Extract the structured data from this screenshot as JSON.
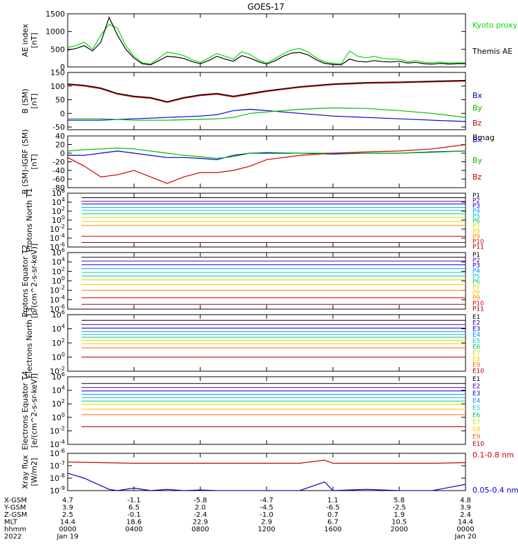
{
  "title": "GOES-17",
  "chart_data": [
    {
      "type": "line",
      "ylabel": "AE index [nT]",
      "ylim": [
        0,
        1500
      ],
      "yticks": [
        "0",
        "500",
        "1000",
        "1500"
      ],
      "ytick_values": [
        0,
        500,
        1000,
        1500
      ],
      "yscale": "linear",
      "legend": [
        {
          "name": "Kyoto proxy AE",
          "color": "#00dd00"
        },
        {
          "name": "Themis AE",
          "color": "#000000"
        }
      ],
      "series": [
        {
          "name": "Kyoto proxy AE",
          "color": "#00dd00",
          "x": [
            0,
            0.5,
            1,
            1.5,
            2,
            2.5,
            3,
            3.5,
            4,
            4.5,
            5,
            5.5,
            6,
            6.5,
            7,
            7.5,
            8,
            8.5,
            9,
            9.5,
            10,
            10.5,
            11,
            11.5,
            12,
            12.5,
            13,
            13.5,
            14,
            14.5,
            15,
            15.5,
            16,
            16.5,
            17,
            17.5,
            18,
            18.5,
            19,
            19.5,
            20,
            20.5,
            21,
            21.5,
            22,
            22.5,
            23,
            23.5,
            24
          ],
          "values": [
            550,
            600,
            700,
            500,
            900,
            1200,
            1100,
            600,
            300,
            120,
            80,
            250,
            420,
            380,
            320,
            200,
            130,
            250,
            380,
            300,
            220,
            430,
            350,
            200,
            110,
            230,
            370,
            480,
            520,
            420,
            260,
            140,
            100,
            90,
            450,
            300,
            260,
            300,
            240,
            220,
            220,
            150,
            180,
            130,
            120,
            140,
            110,
            120,
            120
          ]
        },
        {
          "name": "Themis AE",
          "color": "#000000",
          "x": [
            0,
            0.5,
            1,
            1.5,
            2,
            2.5,
            3,
            3.5,
            4,
            4.5,
            5,
            5.5,
            6,
            6.5,
            7,
            7.5,
            8,
            8.5,
            9,
            9.5,
            10,
            10.5,
            11,
            11.5,
            12,
            12.5,
            13,
            13.5,
            14,
            14.5,
            15,
            15.5,
            16,
            16.5,
            17,
            17.5,
            18,
            18.5,
            19,
            19.5,
            20,
            20.5,
            21,
            21.5,
            22,
            22.5,
            23,
            23.5,
            24
          ],
          "values": [
            480,
            520,
            600,
            450,
            700,
            1400,
            900,
            500,
            250,
            90,
            60,
            180,
            300,
            280,
            240,
            150,
            90,
            180,
            300,
            220,
            160,
            320,
            250,
            150,
            80,
            170,
            300,
            390,
            410,
            340,
            200,
            100,
            70,
            60,
            220,
            160,
            140,
            180,
            150,
            140,
            160,
            110,
            130,
            90,
            80,
            100,
            80,
            90,
            90
          ]
        }
      ]
    },
    {
      "type": "line",
      "ylabel": "B (SM) [nT]",
      "ylim": [
        -60,
        150
      ],
      "yticks": [
        "-50",
        "0",
        "50",
        "100",
        "150"
      ],
      "ytick_values": [
        -50,
        0,
        50,
        100,
        150
      ],
      "yscale": "linear",
      "legend": [
        {
          "name": "Bx",
          "color": "#0000cc"
        },
        {
          "name": "By",
          "color": "#00bb00"
        },
        {
          "name": "Bz",
          "color": "#cc0000"
        },
        {
          "name": "Bmag",
          "color": "#000000"
        }
      ],
      "series": [
        {
          "name": "Bx",
          "color": "#0000cc",
          "x": [
            0,
            2,
            4,
            6,
            8,
            9,
            10,
            11,
            12,
            14,
            16,
            18,
            20,
            22,
            24
          ],
          "values": [
            -25,
            -25,
            -20,
            -15,
            -10,
            -5,
            10,
            15,
            10,
            0,
            -10,
            -15,
            -20,
            -25,
            -30
          ]
        },
        {
          "name": "By",
          "color": "#00bb00",
          "x": [
            0,
            2,
            4,
            6,
            8,
            9,
            10,
            11,
            12,
            14,
            16,
            18,
            20,
            22,
            24
          ],
          "values": [
            -20,
            -20,
            -25,
            -25,
            -22,
            -20,
            -15,
            0,
            5,
            15,
            20,
            18,
            10,
            0,
            -15
          ]
        },
        {
          "name": "Bz",
          "color": "#cc0000",
          "x": [
            0,
            1,
            2,
            3,
            4,
            5,
            6,
            7,
            8,
            9,
            10,
            11,
            12,
            14,
            16,
            18,
            20,
            22,
            24
          ],
          "values": [
            105,
            100,
            90,
            70,
            60,
            55,
            40,
            55,
            65,
            70,
            60,
            70,
            80,
            95,
            105,
            110,
            112,
            115,
            118
          ]
        },
        {
          "name": "Bmag",
          "color": "#000000",
          "x": [
            0,
            1,
            2,
            3,
            4,
            5,
            6,
            7,
            8,
            9,
            10,
            11,
            12,
            14,
            16,
            18,
            20,
            22,
            24
          ],
          "values": [
            108,
            103,
            93,
            73,
            63,
            58,
            43,
            58,
            68,
            73,
            63,
            73,
            83,
            98,
            108,
            113,
            115,
            118,
            121
          ]
        }
      ]
    },
    {
      "type": "line",
      "ylabel": "B (SM)-IGRF (SM) [nT]",
      "ylim": [
        -80,
        40
      ],
      "yticks": [
        "-80",
        "-60",
        "-40",
        "-20",
        "0",
        "20",
        "40"
      ],
      "ytick_values": [
        -80,
        -60,
        -40,
        -20,
        0,
        20,
        40
      ],
      "yscale": "linear",
      "legend": [
        {
          "name": "Bx",
          "color": "#0000cc"
        },
        {
          "name": "By",
          "color": "#00bb00"
        },
        {
          "name": "Bz",
          "color": "#cc0000"
        }
      ],
      "series": [
        {
          "name": "Bx",
          "color": "#0000cc",
          "x": [
            0,
            1,
            2,
            3,
            4,
            5,
            6,
            7,
            8,
            9,
            10,
            11,
            12,
            14,
            16,
            18,
            20,
            22,
            24
          ],
          "values": [
            -5,
            -5,
            0,
            5,
            0,
            -5,
            -10,
            -10,
            -12,
            -15,
            -5,
            0,
            0,
            0,
            -2,
            0,
            0,
            3,
            5
          ]
        },
        {
          "name": "By",
          "color": "#00bb00",
          "x": [
            0,
            1,
            2,
            3,
            4,
            5,
            6,
            7,
            8,
            9,
            10,
            11,
            12,
            14,
            16,
            18,
            20,
            22,
            24
          ],
          "values": [
            5,
            8,
            10,
            12,
            10,
            5,
            0,
            -5,
            -8,
            -12,
            -8,
            0,
            2,
            0,
            0,
            0,
            0,
            2,
            5
          ]
        },
        {
          "name": "Bz",
          "color": "#cc0000",
          "x": [
            0,
            1,
            2,
            3,
            4,
            5,
            6,
            7,
            8,
            9,
            10,
            11,
            12,
            14,
            16,
            18,
            20,
            22,
            24
          ],
          "values": [
            -10,
            -30,
            -55,
            -50,
            -40,
            -55,
            -70,
            -55,
            -45,
            -45,
            -40,
            -30,
            -15,
            -5,
            0,
            3,
            5,
            10,
            20
          ]
        }
      ]
    },
    {
      "type": "line",
      "ylabel": "Protons North T1",
      "yscale": "log",
      "ylim": [
        -6,
        6
      ],
      "yticks": [
        "10^6",
        "10^4",
        "10^2",
        "10^0",
        "10^-2",
        "10^-4",
        "10^-6"
      ],
      "ytick_values": [
        6,
        4,
        2,
        0,
        -2,
        -4,
        -6
      ],
      "legend": [
        {
          "name": "P1",
          "color": "#000000"
        },
        {
          "name": "P2",
          "color": "#5500aa"
        },
        {
          "name": "P3",
          "color": "#0000dd"
        },
        {
          "name": "P4",
          "color": "#0099ff"
        },
        {
          "name": "P5",
          "color": "#00cccc"
        },
        {
          "name": "P6",
          "color": "#00cc66"
        },
        {
          "name": "P7",
          "color": "#ccdd00"
        },
        {
          "name": "P8",
          "color": "#ffcc00"
        },
        {
          "name": "P9",
          "color": "#ff8800"
        },
        {
          "name": "P10",
          "color": "#dd0000"
        },
        {
          "name": "P11",
          "color": "#880000"
        }
      ],
      "channel_levels": [
        5.0,
        4.2,
        3.6,
        2.8,
        2.2,
        1.4,
        0.6,
        -0.3,
        -1.2,
        -3.6,
        -5.0
      ]
    },
    {
      "type": "line",
      "ylabel": "Protons Equator T2 [p/(cm^2-s-sr-keV)]",
      "yscale": "log",
      "ylim": [
        -6,
        6
      ],
      "yticks": [
        "10^6",
        "10^4",
        "10^2",
        "10^0",
        "10^-2",
        "10^-4",
        "10^-6"
      ],
      "ytick_values": [
        6,
        4,
        2,
        0,
        -2,
        -4,
        -6
      ],
      "legend": [
        {
          "name": "P1",
          "color": "#000000"
        },
        {
          "name": "P2",
          "color": "#5500aa"
        },
        {
          "name": "P3",
          "color": "#0000dd"
        },
        {
          "name": "P4",
          "color": "#0099ff"
        },
        {
          "name": "P5",
          "color": "#00cccc"
        },
        {
          "name": "P6",
          "color": "#00cc66"
        },
        {
          "name": "P7",
          "color": "#ccdd00"
        },
        {
          "name": "P8",
          "color": "#ffcc00"
        },
        {
          "name": "P9",
          "color": "#ff8800"
        },
        {
          "name": "P10",
          "color": "#dd0000"
        },
        {
          "name": "P11",
          "color": "#880000"
        }
      ],
      "channel_levels": [
        5.0,
        4.2,
        3.4,
        2.6,
        1.8,
        1.0,
        0.2,
        -0.8,
        -2.0,
        -3.6,
        -5.0
      ]
    },
    {
      "type": "line",
      "ylabel": "Electrons North T3",
      "yscale": "log",
      "ylim": [
        -2,
        6
      ],
      "yticks": [
        "10^6",
        "10^4",
        "10^2",
        "10^0",
        "10^-2"
      ],
      "ytick_values": [
        6,
        4,
        2,
        0,
        -2
      ],
      "legend": [
        {
          "name": "E1",
          "color": "#000000"
        },
        {
          "name": "E2",
          "color": "#5500aa"
        },
        {
          "name": "E3",
          "color": "#0000dd"
        },
        {
          "name": "E4",
          "color": "#0099ff"
        },
        {
          "name": "E5",
          "color": "#00cccc"
        },
        {
          "name": "E6",
          "color": "#00cc66"
        },
        {
          "name": "E7",
          "color": "#ccdd00"
        },
        {
          "name": "E8",
          "color": "#ffcc00"
        },
        {
          "name": "E9",
          "color": "#ff6600"
        },
        {
          "name": "E10",
          "color": "#aa0000"
        }
      ],
      "channel_levels": [
        5.2,
        4.6,
        4.1,
        3.6,
        3.2,
        2.8,
        2.3,
        1.9,
        1.3,
        0.0
      ]
    },
    {
      "type": "line",
      "ylabel": "Electrons Equator T4 [e/(cm^2-s-sr-keV)]",
      "yscale": "log",
      "ylim": [
        -4,
        6
      ],
      "yticks": [
        "10^6",
        "10^4",
        "10^2",
        "10^0",
        "10^-2",
        "10^-4"
      ],
      "ytick_values": [
        6,
        4,
        2,
        0,
        -2,
        -4
      ],
      "legend": [
        {
          "name": "E1",
          "color": "#000000"
        },
        {
          "name": "E2",
          "color": "#5500aa"
        },
        {
          "name": "E3",
          "color": "#0000dd"
        },
        {
          "name": "E4",
          "color": "#0099ff"
        },
        {
          "name": "E5",
          "color": "#00cccc"
        },
        {
          "name": "E6",
          "color": "#00cc66"
        },
        {
          "name": "E7",
          "color": "#ccdd00"
        },
        {
          "name": "E8",
          "color": "#ffcc00"
        },
        {
          "name": "E9",
          "color": "#ff6600"
        },
        {
          "name": "E10",
          "color": "#aa0000"
        }
      ],
      "channel_levels": [
        5.0,
        4.4,
        3.9,
        3.4,
        2.9,
        2.4,
        1.9,
        1.2,
        0.4,
        -1.4
      ]
    },
    {
      "type": "line",
      "ylabel": "Xray flux [W/m2]",
      "yscale": "log",
      "ylim": [
        -9,
        -6
      ],
      "yticks": [
        "10^-6",
        "10^-7",
        "10^-8",
        "10^-9"
      ],
      "ytick_values": [
        -6,
        -7,
        -8,
        -9
      ],
      "legend": [
        {
          "name": "0.1-0.8 nm",
          "color": "#cc0000"
        },
        {
          "name": "0.05-0.4 nm",
          "color": "#0000cc"
        }
      ],
      "series": [
        {
          "name": "0.1-0.8 nm",
          "color": "#cc0000",
          "x": [
            0,
            2,
            4,
            6,
            8,
            10,
            12,
            14,
            15.5,
            16,
            18,
            20,
            22,
            24
          ],
          "values": [
            -6.7,
            -6.75,
            -6.8,
            -6.8,
            -6.8,
            -6.8,
            -6.8,
            -6.8,
            -6.55,
            -6.8,
            -6.8,
            -6.8,
            -6.8,
            -6.75
          ]
        },
        {
          "name": "0.05-0.4 nm",
          "color": "#0000cc",
          "x": [
            0,
            0.5,
            1,
            1.5,
            2,
            2.5,
            3,
            4,
            5,
            6,
            7,
            8,
            9,
            10,
            14,
            15.5,
            16,
            18,
            20,
            22,
            24
          ],
          "values": [
            -7.6,
            -7.8,
            -8.0,
            -8.3,
            -8.6,
            -8.9,
            -9.0,
            -8.8,
            -9.0,
            -8.9,
            -9.0,
            -8.95,
            -9.0,
            -9.0,
            -9.0,
            -8.3,
            -9.0,
            -8.9,
            -9.0,
            -9.0,
            -8.5
          ]
        }
      ]
    }
  ],
  "orbit_table": {
    "row_labels": [
      "X-GSM",
      "Y-GSM",
      "Z-GSM",
      "MLT",
      "hhmm",
      "2022"
    ],
    "columns": [
      [
        "4.7",
        "3.9",
        "2.5",
        "14.4",
        "0000",
        "Jan 19"
      ],
      [
        "-1.1",
        "6.5",
        "-0.1",
        "18.6",
        "0400",
        ""
      ],
      [
        "-5.8",
        "2.0",
        "-2.4",
        "22.9",
        "0800",
        ""
      ],
      [
        "-4.7",
        "-4.5",
        "-1.0",
        "2.9",
        "1200",
        ""
      ],
      [
        "1.1",
        "-6.5",
        "0.7",
        "6.7",
        "1600",
        ""
      ],
      [
        "5.8",
        "-2.5",
        "1.9",
        "10.5",
        "2000",
        ""
      ],
      [
        "4.8",
        "3.9",
        "2.4",
        "14.4",
        "0000",
        "Jan 20"
      ]
    ]
  },
  "x_hours": [
    0,
    4,
    8,
    12,
    16,
    20,
    24
  ]
}
